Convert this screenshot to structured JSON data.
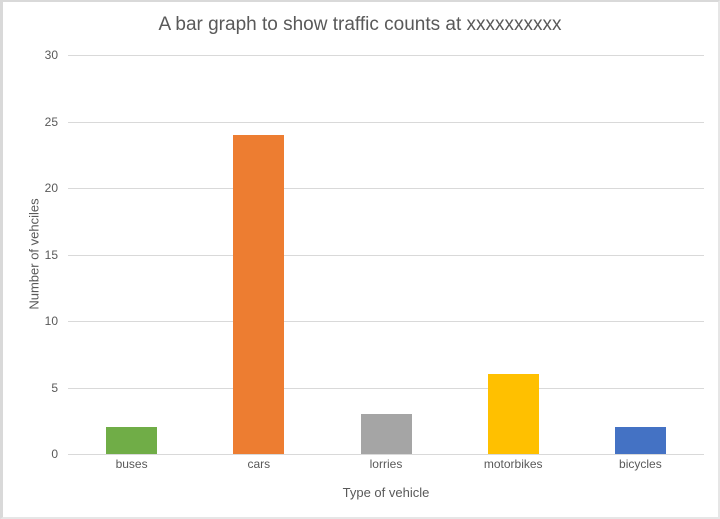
{
  "chart_data": {
    "type": "bar",
    "title": "A bar graph to show traffic counts at xxxxxxxxxx",
    "xlabel": "Type of vehicle",
    "ylabel": "Number of vehciles",
    "categories": [
      "buses",
      "cars",
      "lorries",
      "motorbikes",
      "bicycles"
    ],
    "values": [
      2,
      24,
      3,
      6,
      2
    ],
    "colors": [
      "#70ad47",
      "#ed7d31",
      "#a5a5a5",
      "#ffc000",
      "#4472c4"
    ],
    "ylim": [
      0,
      30
    ],
    "yticks": [
      0,
      5,
      10,
      15,
      20,
      25,
      30
    ],
    "grid": true,
    "legend": "none"
  }
}
